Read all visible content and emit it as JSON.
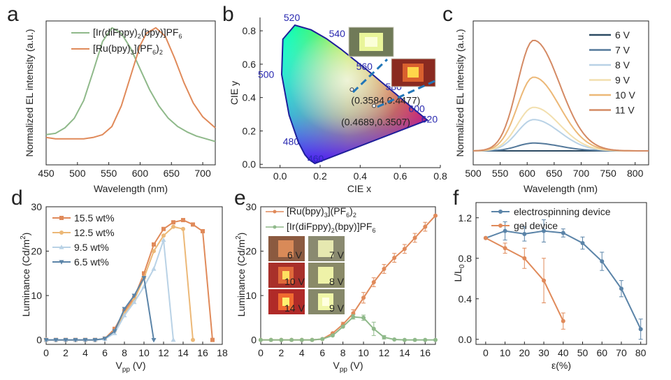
{
  "colors": {
    "orange": "#e08a5a",
    "green": "#8fb98a",
    "steel": "#5b84a8"
  },
  "panels": {
    "a": "a",
    "b": "b",
    "c": "c",
    "d": "d",
    "e": "e",
    "f": "f"
  },
  "chart_data": [
    {
      "id": "a",
      "type": "line",
      "xlabel": "Wavelength (nm)",
      "ylabel": "Normalized EL intensity (a.u.)",
      "xlim": [
        450,
        720
      ],
      "ylim": [
        0,
        1.05
      ],
      "xticks": [
        "450",
        "500",
        "550",
        "600",
        "650",
        "700"
      ],
      "series": [
        {
          "name": "[Ir(diFppy)2(bpy)]PF6",
          "legend_main": "[Ir(diFppy)",
          "legend_sub1": "2",
          "legend_mid": "(bpy)]PF",
          "legend_sub2": "6",
          "legend_end": "",
          "color": "#8fb98a",
          "x": [
            450,
            465,
            480,
            495,
            510,
            525,
            540,
            555,
            570,
            585,
            600,
            615,
            630,
            645,
            660,
            675,
            690,
            705,
            720
          ],
          "y": [
            0.22,
            0.23,
            0.27,
            0.34,
            0.47,
            0.68,
            0.9,
            1.0,
            0.96,
            0.85,
            0.7,
            0.55,
            0.43,
            0.34,
            0.28,
            0.24,
            0.21,
            0.19,
            0.17
          ]
        },
        {
          "name": "[Ru(bpy)3](PF6)2",
          "legend_main": "[Ru(bpy)",
          "legend_sub1": "3",
          "legend_mid": "](PF",
          "legend_sub2": "6",
          "legend_end": ")",
          "legend_sub3": "2",
          "color": "#e08a5a",
          "x": [
            450,
            465,
            480,
            495,
            510,
            525,
            540,
            555,
            570,
            585,
            600,
            610,
            625,
            640,
            655,
            670,
            685,
            700,
            720
          ],
          "y": [
            0.2,
            0.19,
            0.19,
            0.19,
            0.19,
            0.2,
            0.22,
            0.28,
            0.43,
            0.65,
            0.87,
            0.96,
            1.0,
            0.94,
            0.78,
            0.6,
            0.45,
            0.35,
            0.27
          ]
        }
      ]
    },
    {
      "id": "b",
      "type": "scatter",
      "xlabel": "CIE x",
      "ylabel": "CIE y",
      "xlim": [
        -0.1,
        0.8
      ],
      "ylim": [
        -0.02,
        0.88
      ],
      "xticks": [
        "0.0",
        "0.2",
        "0.4",
        "0.6",
        "0.8"
      ],
      "yticks": [
        "0.0",
        "0.2",
        "0.4",
        "0.6",
        "0.8"
      ],
      "wavelength_labels": [
        {
          "text": "460",
          "x": 0.144,
          "y": 0.03
        },
        {
          "text": "480",
          "x": 0.091,
          "y": 0.133
        },
        {
          "text": "500",
          "x": 0.008,
          "y": 0.538
        },
        {
          "text": "520",
          "x": 0.074,
          "y": 0.834
        },
        {
          "text": "540",
          "x": 0.23,
          "y": 0.754
        },
        {
          "text": "560",
          "x": 0.373,
          "y": 0.624
        },
        {
          "text": "580",
          "x": 0.512,
          "y": 0.487
        },
        {
          "text": "600",
          "x": 0.627,
          "y": 0.372
        },
        {
          "text": "620",
          "x": 0.691,
          "y": 0.308
        }
      ],
      "points": [
        {
          "label": "(0.3584,0.4477)",
          "x": 0.3584,
          "y": 0.4477
        },
        {
          "label": "(0.4689,0.3507)",
          "x": 0.4689,
          "y": 0.3507
        }
      ]
    },
    {
      "id": "c",
      "type": "line",
      "xlabel": "Wavelength (nm)",
      "ylabel": "Normalized EL intensity (a.u.)",
      "xlim": [
        500,
        825
      ],
      "xticks": [
        "500",
        "550",
        "600",
        "650",
        "700",
        "750",
        "800"
      ],
      "peak_nm": 612,
      "series": [
        {
          "name": "6 V",
          "peak": 0.0,
          "color": "#2c4a63"
        },
        {
          "name": "7 V",
          "peak": 0.07,
          "color": "#53789a"
        },
        {
          "name": "8 V",
          "peak": 0.28,
          "color": "#b9d2e6"
        },
        {
          "name": "9 V",
          "peak": 0.39,
          "color": "#f2dfae"
        },
        {
          "name": "10 V",
          "peak": 0.66,
          "color": "#ecb877"
        },
        {
          "name": "11 V",
          "peak": 0.99,
          "color": "#d48a64"
        }
      ]
    },
    {
      "id": "d",
      "type": "line",
      "xlabel": "V",
      "xlabel_sub": "pp",
      "xlabel_unit": " (V)",
      "ylabel": "Luminance (Cd/m",
      "ylabel_sup": "2",
      "ylabel_end": ")",
      "xlim": [
        0,
        18
      ],
      "ylim": [
        -1,
        30
      ],
      "xticks": [
        "0",
        "2",
        "4",
        "6",
        "8",
        "10",
        "12",
        "14",
        "16",
        "18"
      ],
      "yticks": [
        "0",
        "10",
        "20",
        "30"
      ],
      "series": [
        {
          "name": "15.5 wt%",
          "color": "#e08a5a",
          "marker": "square",
          "x": [
            0,
            1,
            2,
            3,
            4,
            5,
            6,
            7,
            8,
            9,
            10,
            11,
            12,
            13,
            14,
            15,
            16,
            17
          ],
          "y": [
            0,
            0,
            0,
            0,
            0,
            0,
            0.3,
            2.5,
            6.5,
            9.5,
            15,
            21.5,
            25,
            26.5,
            27,
            26,
            24.5,
            0
          ]
        },
        {
          "name": "12.5 wt%",
          "color": "#ecb877",
          "marker": "circle",
          "x": [
            0,
            1,
            2,
            3,
            4,
            5,
            6,
            7,
            8,
            9,
            10,
            11,
            12,
            13,
            14,
            15
          ],
          "y": [
            0,
            0,
            0,
            0,
            0,
            0,
            0.3,
            2,
            6,
            9,
            14,
            20,
            23.5,
            25.5,
            25,
            0
          ]
        },
        {
          "name": "9.5 wt%",
          "color": "#b9d2e6",
          "marker": "triangle",
          "x": [
            0,
            1,
            2,
            3,
            4,
            5,
            6,
            7,
            8,
            9,
            10,
            11,
            12,
            13
          ],
          "y": [
            0,
            0,
            0,
            0,
            0,
            0,
            0.2,
            1.5,
            5.5,
            8.5,
            12,
            16,
            22.5,
            0
          ]
        },
        {
          "name": "6.5 wt%",
          "color": "#5b84a8",
          "marker": "tridown",
          "x": [
            0,
            1,
            2,
            3,
            4,
            5,
            6,
            7,
            8,
            9,
            10,
            11
          ],
          "y": [
            0,
            0,
            0,
            0,
            0,
            0,
            0.3,
            2,
            7,
            10,
            14,
            0
          ]
        }
      ]
    },
    {
      "id": "e",
      "type": "line",
      "xlabel": "V",
      "xlabel_sub": "pp",
      "xlabel_unit": " (V)",
      "ylabel": "Luminance (Cd/m",
      "ylabel_sup": "2",
      "ylabel_end": ")",
      "xlim": [
        0,
        17
      ],
      "ylim": [
        -1,
        30
      ],
      "xticks": [
        "0",
        "2",
        "4",
        "6",
        "8",
        "10",
        "12",
        "14",
        "16"
      ],
      "yticks": [
        "0",
        "10",
        "20",
        "30"
      ],
      "inset_labels": [
        "6 V",
        "7 V",
        "10 V",
        "8 V",
        "14 V",
        "9 V"
      ],
      "series": [
        {
          "name": "[Ru(bpy)3](PF6)2",
          "legend_main": "[Ru(bpy)",
          "legend_sub1": "3",
          "legend_mid": "](PF",
          "legend_sub2": "6",
          "legend_end": ")",
          "legend_sub3": "2",
          "color": "#e08a5a",
          "x": [
            0,
            1,
            2,
            3,
            4,
            5,
            6,
            7,
            8,
            9,
            10,
            11,
            12,
            13,
            14,
            15,
            16,
            17
          ],
          "y": [
            0,
            0,
            0,
            0,
            0,
            0,
            0.2,
            1.5,
            3.5,
            6,
            9.5,
            13,
            16,
            18.5,
            20.5,
            23,
            25.5,
            28
          ],
          "err": [
            0,
            0,
            0,
            0,
            0,
            0,
            0,
            0,
            0.5,
            0.8,
            1.2,
            1,
            1,
            1,
            1,
            1,
            1,
            0
          ]
        },
        {
          "name": "[Ir(diFppy)2(bpy)]PF6",
          "legend_main": "[Ir(diFppy)",
          "legend_sub1": "2",
          "legend_mid": "(bpy)]PF",
          "legend_sub2": "6",
          "legend_end": "",
          "color": "#8fb98a",
          "x": [
            0,
            1,
            2,
            3,
            4,
            5,
            6,
            7,
            8,
            9,
            10,
            11,
            12,
            13,
            14,
            15,
            16,
            17
          ],
          "y": [
            0,
            0,
            0,
            0,
            0,
            0,
            0.2,
            1,
            3,
            5.2,
            5,
            2.5,
            0.6,
            0.1,
            0,
            0,
            0,
            0
          ],
          "err": [
            0,
            0,
            0,
            0,
            0,
            0,
            0,
            0,
            0,
            0.5,
            0.6,
            1.5,
            0.4,
            0,
            0,
            0,
            0,
            0
          ]
        }
      ]
    },
    {
      "id": "f",
      "type": "line",
      "xlabel": "ε(%)",
      "ylabel": "L/L",
      "ylabel_sub": "0",
      "xlim": [
        -5,
        83
      ],
      "ylim": [
        -0.05,
        1.35
      ],
      "xticks": [
        "0",
        "10",
        "20",
        "30",
        "40",
        "50",
        "60",
        "70",
        "80"
      ],
      "yticks": [
        "0.0",
        "0.4",
        "0.8",
        "1.2"
      ],
      "series": [
        {
          "name": "electrospinning device",
          "color": "#5b84a8",
          "x": [
            0,
            10,
            20,
            30,
            40,
            50,
            60,
            70,
            80
          ],
          "y": [
            1.0,
            1.07,
            1.04,
            1.07,
            1.05,
            0.95,
            0.77,
            0.5,
            0.1
          ],
          "err": [
            0,
            0.09,
            0.07,
            0.11,
            0.04,
            0.06,
            0.09,
            0.08,
            0.1
          ]
        },
        {
          "name": "gel device",
          "color": "#e08a5a",
          "x": [
            0,
            10,
            20,
            30,
            40
          ],
          "y": [
            1.0,
            0.9,
            0.8,
            0.58,
            0.18
          ],
          "err": [
            0,
            0.05,
            0.1,
            0.22,
            0.08
          ]
        }
      ]
    }
  ]
}
